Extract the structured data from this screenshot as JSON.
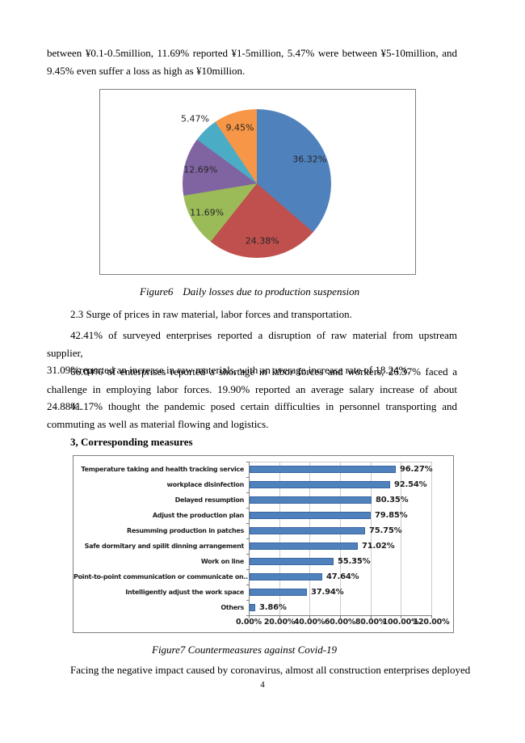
{
  "document": {
    "paragraphs": {
      "p_top": [
        "between ¥0.1-0.5million, 11.69% reported ¥1-5million, 5.47% were between ¥5-10million, and",
        "9.45% even suffer a loss as high as ¥10million."
      ],
      "p_section23": [
        "2.3 Surge of prices in raw material, labor forces and transportation."
      ],
      "p_raw_material": [
        "42.41% of surveyed enterprises reported a disruption of raw material from upstream supplier,",
        "31.09%reported an increase in raw materials, with an average increase rate of 18.24%."
      ],
      "p_labor": [
        "66.04% of enterprises reported a shortage in labor forces and workers, 26.37% faced a",
        "challenge in employing labor forces. 19.90% reported an average salary increase of about 24.88%."
      ],
      "p_transport": [
        "41.17% thought the pandemic posed certain difficulties in personnel transporting and",
        "commuting as well as material flowing and logistics."
      ],
      "h_measures": [
        "3, Corresponding measures"
      ],
      "p_facing": [
        "Facing the negative impact caused by coronavirus, almost all construction enterprises deployed"
      ]
    },
    "captions": {
      "fig6_label": "Figure6",
      "fig6_text": "Daily losses due to production suspension",
      "fig7_text": "Figure7 Countermeasures against Covid-19"
    },
    "page_number": "4"
  },
  "chart_data": [
    {
      "type": "pie",
      "figure": "Figure6",
      "title": "Daily losses due to production suspension",
      "start_angle_deg": 0,
      "direction": "clockwise",
      "legend": "none",
      "slices": [
        {
          "label": "36.32%",
          "value": 36.32,
          "color": "#4F81BD",
          "label_inside": true
        },
        {
          "label": "24.38%",
          "value": 24.38,
          "color": "#C0504D",
          "label_inside": true
        },
        {
          "label": "11.69%",
          "value": 11.69,
          "color": "#9BBB59",
          "label_inside": true
        },
        {
          "label": "12.69%",
          "value": 12.69,
          "color": "#8064A2",
          "label_inside": true
        },
        {
          "label": "5.47%",
          "value": 5.47,
          "color": "#4BACC6",
          "label_inside": false
        },
        {
          "label": "9.45%",
          "value": 9.45,
          "color": "#F79646",
          "label_inside": true
        }
      ]
    },
    {
      "type": "bar",
      "orientation": "horizontal",
      "figure": "Figure7",
      "title": "Countermeasures against Covid-19",
      "categories": [
        "Temperature taking and health tracking service",
        "workplace disinfection",
        "Delayed resumption",
        "Adjust the production plan",
        "Resumming production in patches",
        "Safe dormitary and spilit dinning arrangement",
        "Work on line",
        "Point-to-point communication or communicate on..",
        "Intelligently adjust the work space",
        "Others"
      ],
      "values": [
        96.27,
        92.54,
        80.35,
        79.85,
        75.75,
        71.02,
        55.35,
        47.64,
        37.94,
        3.86
      ],
      "value_labels": [
        "96.27%",
        "92.54%",
        "80.35%",
        "79.85%",
        "75.75%",
        "71.02%",
        "55.35%",
        "47.64%",
        "37.94%",
        "3.86%"
      ],
      "x_ticks": [
        "0.00%",
        "20.00%",
        "40.00%",
        "60.00%",
        "80.00%",
        "100.00%",
        "120.00%"
      ],
      "xlim": [
        0,
        120
      ],
      "grid": true,
      "legend": "none",
      "bar_color": "#4F81BD",
      "bar_border_color": "#3A66A0",
      "gridline_color": "#CCCCCC",
      "axis_color": "#808080"
    }
  ]
}
